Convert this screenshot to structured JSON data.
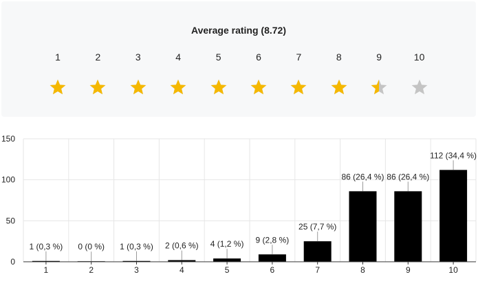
{
  "rating_panel": {
    "title": "Average rating (8.72)",
    "average": 8.72,
    "max": 10,
    "colors": {
      "filled": "#f5b800",
      "empty": "#c4c4c4"
    },
    "stars": [
      {
        "label": "1",
        "fill": 1
      },
      {
        "label": "2",
        "fill": 1
      },
      {
        "label": "3",
        "fill": 1
      },
      {
        "label": "4",
        "fill": 1
      },
      {
        "label": "5",
        "fill": 1
      },
      {
        "label": "6",
        "fill": 1
      },
      {
        "label": "7",
        "fill": 1
      },
      {
        "label": "8",
        "fill": 1
      },
      {
        "label": "9",
        "fill": 0.5
      },
      {
        "label": "10",
        "fill": 0
      }
    ]
  },
  "chart_data": {
    "type": "bar",
    "categories": [
      "1",
      "2",
      "3",
      "4",
      "5",
      "6",
      "7",
      "8",
      "9",
      "10"
    ],
    "values": [
      1,
      0,
      1,
      2,
      4,
      9,
      25,
      86,
      86,
      112
    ],
    "data_labels": [
      "1 (0,3 %)",
      "0 (0 %)",
      "1 (0,3 %)",
      "2 (0,6 %)",
      "4 (1,2 %)",
      "9 (2,8 %)",
      "25 (7,7 %)",
      "86 (26,4 %)",
      "86 (26,4 %)",
      "112 (34,4 %)"
    ],
    "ylim": [
      0,
      150
    ],
    "yticks": [
      "0",
      "50",
      "100",
      "150"
    ],
    "grid": true,
    "colors": {
      "bar": "#000000",
      "grid": "#e6e6e6",
      "axis": "#333333"
    }
  }
}
